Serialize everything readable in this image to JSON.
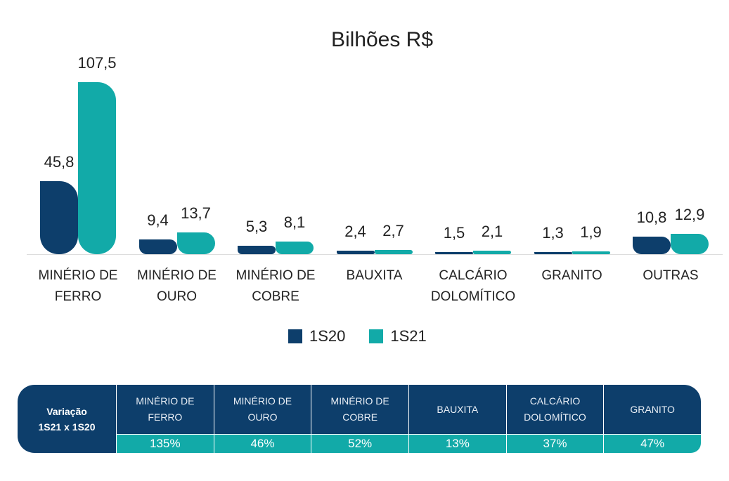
{
  "chart_data": {
    "type": "bar",
    "title": "Bilhões R$",
    "categories": [
      "MINÉRIO DE\nFERRO",
      "MINÉRIO DE\nOURO",
      "MINÉRIO DE\nCOBRE",
      "BAUXITA",
      "CALCÁRIO\nDOLOMÍTICO",
      "GRANITO",
      "OUTRAS"
    ],
    "series": [
      {
        "name": "1S20",
        "color": "#0d3e6b",
        "values": [
          45.8,
          9.4,
          5.3,
          2.4,
          1.5,
          1.3,
          10.8
        ],
        "labels": [
          "45,8",
          "9,4",
          "5,3",
          "2,4",
          "1,5",
          "1,3",
          "10,8"
        ]
      },
      {
        "name": "1S21",
        "color": "#12aaa8",
        "values": [
          107.5,
          13.7,
          8.1,
          2.7,
          2.1,
          1.9,
          12.9
        ],
        "labels": [
          "107,5",
          "13,7",
          "8,1",
          "2,7",
          "2,1",
          "1,9",
          "12,9"
        ]
      }
    ],
    "ylim": [
      0,
      110
    ],
    "grid": false,
    "legend": "bottom"
  },
  "table": {
    "title": "Variação\n1S21 x 1S20",
    "columns": [
      "MINÉRIO DE\nFERRO",
      "MINÉRIO DE\nOURO",
      "MINÉRIO DE\nCOBRE",
      "BAUXITA",
      "CALCÁRIO\nDOLOMÍTICO",
      "GRANITO"
    ],
    "values": [
      "135%",
      "46%",
      "52%",
      "13%",
      "37%",
      "47%"
    ]
  }
}
